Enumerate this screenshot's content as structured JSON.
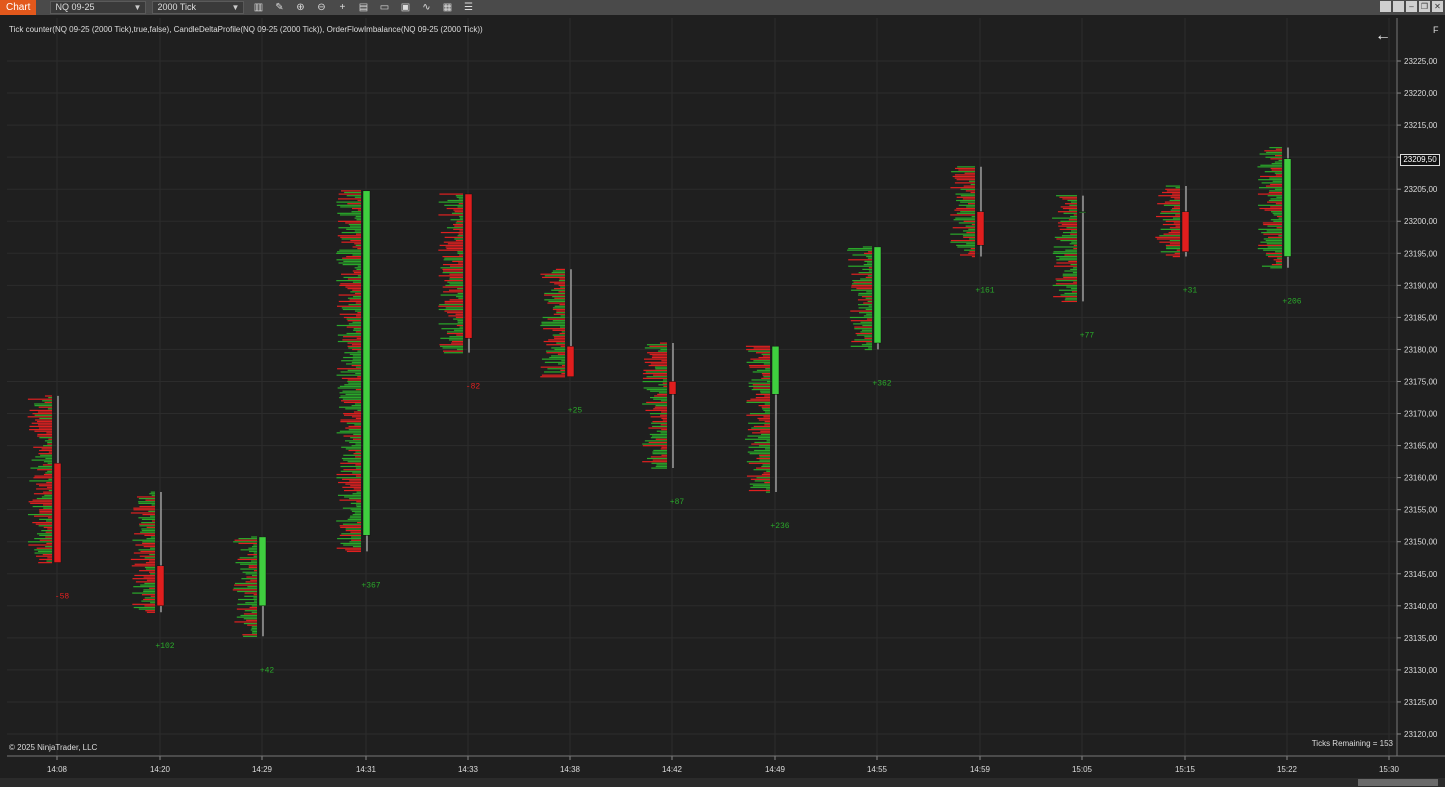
{
  "toolbar": {
    "tab_label": "Chart",
    "instrument": "NQ 09-25",
    "interval": "2000 Tick",
    "tools": [
      {
        "name": "bar-type-icon",
        "glyph": "▥"
      },
      {
        "name": "pencil-icon",
        "glyph": "✎"
      },
      {
        "name": "zoom-in-icon",
        "glyph": "⊕"
      },
      {
        "name": "zoom-out-icon",
        "glyph": "⊖"
      },
      {
        "name": "crosshair-icon",
        "glyph": "+"
      },
      {
        "name": "properties-icon",
        "glyph": "▤"
      },
      {
        "name": "templates-icon",
        "glyph": "▭"
      },
      {
        "name": "screenshot-icon",
        "glyph": "▣"
      },
      {
        "name": "strategy-icon",
        "glyph": "∿"
      },
      {
        "name": "data-box-icon",
        "glyph": "▦"
      },
      {
        "name": "list-icon",
        "glyph": "☰"
      }
    ]
  },
  "indicator_line": "Tick counter(NQ 09-25 (2000 Tick),true,false), CandleDeltaProfile(NQ 09-25 (2000 Tick)), OrderFlowImbalance(NQ 09-25 (2000 Tick))",
  "copyright": "© 2025 NinjaTrader, LLC",
  "ticks_remaining": "Ticks Remaining = 153",
  "f_button": "F",
  "back_arrow": "←",
  "current_price": "23209,50",
  "colors": {
    "up": "#3fce3f",
    "down": "#e01e1e",
    "delta_pos": "#2aa82a",
    "delta_neg": "#e02020",
    "grid": "#2c2c2c",
    "background": "#1f1f1f"
  },
  "chart_data": {
    "type": "candlestick",
    "y_ticks": [
      "23225,00",
      "23220,00",
      "23215,00",
      "23210,00",
      "23205,00",
      "23200,00",
      "23195,00",
      "23190,00",
      "23185,00",
      "23180,00",
      "23175,00",
      "23170,00",
      "23165,00",
      "23160,00",
      "23155,00",
      "23150,00",
      "23145,00",
      "23140,00",
      "23135,00",
      "23130,00",
      "23125,00",
      "23120,00"
    ],
    "ylim": [
      23118.5,
      23229.5
    ],
    "x_ticks": [
      "14:08",
      "14:20",
      "14:29",
      "14:31",
      "14:33",
      "14:38",
      "14:42",
      "14:49",
      "14:55",
      "14:59",
      "15:05",
      "15:15",
      "15:22",
      "15:30"
    ],
    "candles": [
      {
        "time": "14:08",
        "open": 23162.25,
        "high": 23172.75,
        "low": 23146.75,
        "close": 23146.75,
        "delta": "-58"
      },
      {
        "time": "14:20",
        "open": 23146.25,
        "high": 23157.75,
        "low": 23139.0,
        "close": 23140.0,
        "delta": "+102"
      },
      {
        "time": "14:29",
        "open": 23140.0,
        "high": 23150.75,
        "low": 23135.25,
        "close": 23150.75,
        "delta": "+42"
      },
      {
        "time": "14:31",
        "open": 23151.0,
        "high": 23204.75,
        "low": 23148.5,
        "close": 23204.75,
        "delta": "+367"
      },
      {
        "time": "14:33",
        "open": 23204.25,
        "high": 23204.25,
        "low": 23179.5,
        "close": 23181.75,
        "delta": "-82"
      },
      {
        "time": "14:38",
        "open": 23180.5,
        "high": 23192.5,
        "low": 23175.75,
        "close": 23175.75,
        "delta": "+25"
      },
      {
        "time": "14:42",
        "open": 23175.0,
        "high": 23181.0,
        "low": 23161.5,
        "close": 23173.0,
        "delta": "+87"
      },
      {
        "time": "14:49",
        "open": 23173.0,
        "high": 23180.5,
        "low": 23157.75,
        "close": 23180.5,
        "delta": "+236"
      },
      {
        "time": "14:55",
        "open": 23181.0,
        "high": 23196.0,
        "low": 23180.0,
        "close": 23196.0,
        "delta": "+362"
      },
      {
        "time": "14:59",
        "open": 23201.5,
        "high": 23208.5,
        "low": 23194.5,
        "close": 23196.25,
        "delta": "+161"
      },
      {
        "time": "15:05",
        "open": 23201.5,
        "high": 23204.0,
        "low": 23187.5,
        "close": 23201.5,
        "delta": "+77"
      },
      {
        "time": "15:15",
        "open": 23201.5,
        "high": 23205.5,
        "low": 23194.5,
        "close": 23195.25,
        "delta": "+31"
      },
      {
        "time": "15:22",
        "open": 23194.5,
        "high": 23211.5,
        "low": 23192.75,
        "close": 23209.75,
        "delta": "+206"
      }
    ]
  }
}
